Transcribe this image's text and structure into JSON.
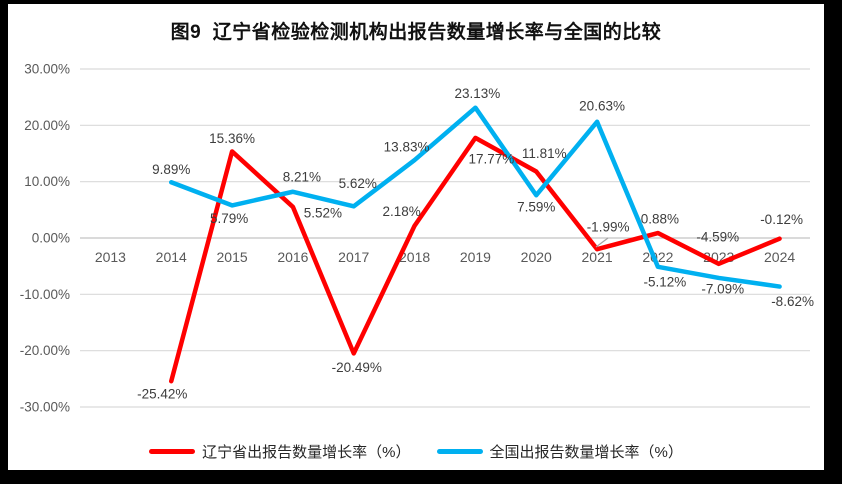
{
  "chart_data": {
    "type": "line",
    "title": "图9  辽宁省检验检测机构出报告数量增长率与全国的比较",
    "categories": [
      "2013",
      "2014",
      "2015",
      "2016",
      "2017",
      "2018",
      "2019",
      "2020",
      "2021",
      "2022",
      "2023",
      "2024"
    ],
    "series": [
      {
        "name": "辽宁省出报告数量增长率（%）",
        "color": "#FF0000",
        "values": [
          null,
          -25.42,
          15.36,
          5.52,
          -20.49,
          2.18,
          17.77,
          11.81,
          -1.99,
          0.88,
          -4.59,
          -0.12
        ]
      },
      {
        "name": "全国出报告数量增长率（%）",
        "color": "#00B0F0",
        "values": [
          null,
          9.89,
          5.79,
          8.21,
          5.62,
          13.83,
          23.13,
          7.59,
          20.63,
          -5.12,
          -7.09,
          -8.62
        ]
      }
    ],
    "y_axis": {
      "ticks": [
        "30.00%",
        "20.00%",
        "10.00%",
        "0.00%",
        "-10.00%",
        "-20.00%",
        "-30.00%"
      ],
      "min": -30,
      "max": 30,
      "step": 10
    },
    "label_format": "0.00%",
    "grid": true,
    "legend_position": "bottom"
  },
  "colors": {
    "background": "#FFFFFF",
    "frame_border": "#000000",
    "gridline": "#D9D9D9",
    "zero_line": "#C3C3C3",
    "axis_text": "#595959",
    "data_label_text": "#3D3D3D",
    "leader_line": "#A6A6A6"
  }
}
